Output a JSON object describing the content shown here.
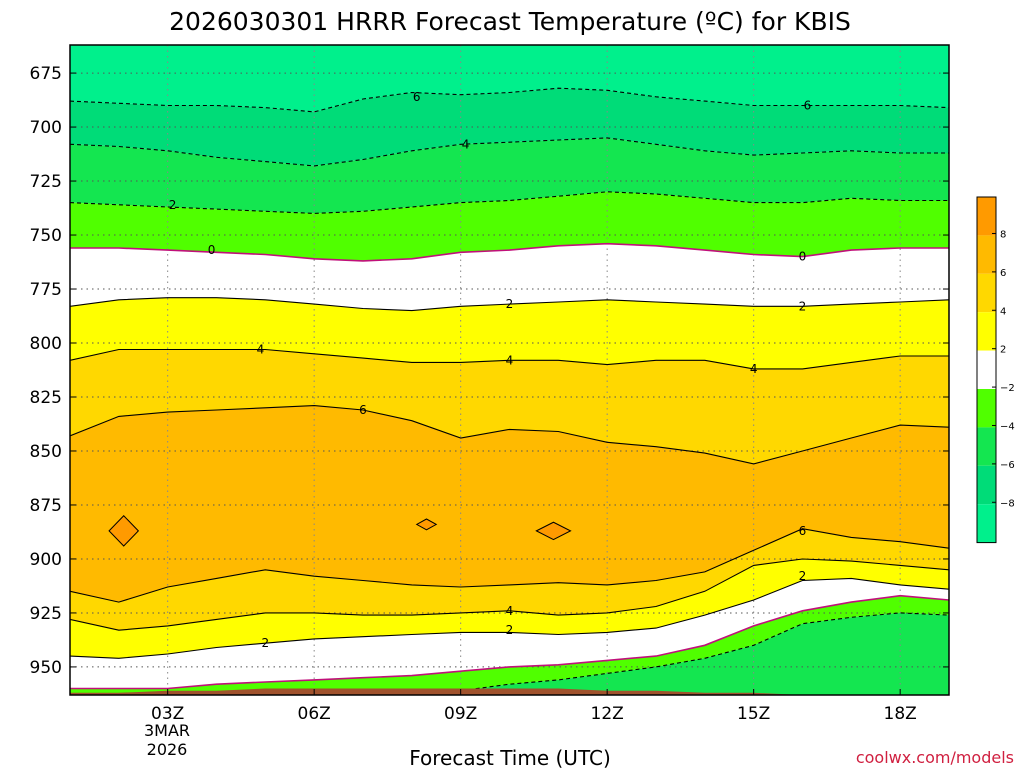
{
  "colors": {
    "cold_8": "#00F08C",
    "cold_6": "#00DC78",
    "cold_4": "#14E650",
    "cold_2": "#50FF00",
    "neutral": "#FFFFFF",
    "warm_2": "#FFFF00",
    "warm_4": "#FFD800",
    "warm_6": "#FFBA00",
    "warm_8": "#FF9A00",
    "ground": "#A0522D",
    "zero_line": "#C0107A",
    "website": "#D02040"
  },
  "chart_data": {
    "type": "heatmap",
    "title": "2026030301 HRRR Forecast Temperature (ºC) for KBIS",
    "xlabel": "Forecast Time (UTC)",
    "ylabel": "",
    "website": "coolwx.com/models",
    "date_label": [
      "3MAR",
      "2026"
    ],
    "xlim": [
      1,
      19
    ],
    "ylim": [
      662,
      963
    ],
    "y_ticks": [
      675,
      700,
      725,
      750,
      775,
      800,
      825,
      850,
      875,
      900,
      925,
      950
    ],
    "y_tick_labels": [
      "675",
      "700",
      "725",
      "750",
      "775",
      "800",
      "825",
      "850",
      "875",
      "900",
      "925",
      "950"
    ],
    "x_ticks": [
      3,
      6,
      9,
      12,
      15,
      18
    ],
    "x_tick_labels": [
      "03Z",
      "06Z",
      "09Z",
      "12Z",
      "15Z",
      "18Z"
    ],
    "colorbar": {
      "tick_labels": [
        "8",
        "6",
        "4",
        "2",
        "−2",
        "−4",
        "−6",
        "−8"
      ]
    },
    "isotherm_x": [
      1,
      2,
      3,
      4,
      5,
      6,
      7,
      8,
      9,
      10,
      11,
      12,
      13,
      14,
      15,
      16,
      17,
      18,
      19
    ],
    "isotherms": [
      {
        "temp": -6,
        "p": [
          688,
          689,
          690,
          690,
          691,
          693,
          687,
          684,
          685,
          684,
          682,
          683,
          686,
          688,
          690,
          690,
          690,
          690,
          691
        ]
      },
      {
        "temp": -4,
        "p": [
          708,
          709,
          711,
          714,
          716,
          718,
          715,
          711,
          708,
          707,
          706,
          705,
          708,
          711,
          713,
          712,
          711,
          712,
          712
        ]
      },
      {
        "temp": -2,
        "p": [
          735,
          736,
          737,
          738,
          739,
          740,
          739,
          737,
          735,
          734,
          732,
          730,
          731,
          733,
          735,
          735,
          733,
          734,
          734
        ]
      },
      {
        "temp": 0,
        "p": [
          756,
          756,
          757,
          758,
          759,
          761,
          762,
          761,
          758,
          757,
          755,
          754,
          755,
          757,
          759,
          760,
          757,
          756,
          756
        ]
      },
      {
        "temp": 2,
        "p": [
          783,
          780,
          779,
          779,
          780,
          782,
          784,
          785,
          783,
          782,
          781,
          780,
          781,
          782,
          783,
          783,
          782,
          781,
          780
        ]
      },
      {
        "temp": 4,
        "p": [
          808,
          803,
          803,
          803,
          803,
          805,
          807,
          809,
          809,
          808,
          808,
          810,
          808,
          808,
          812,
          812,
          809,
          806,
          806
        ]
      },
      {
        "temp": 6,
        "p": [
          843,
          834,
          832,
          831,
          830,
          829,
          831,
          836,
          844,
          840,
          841,
          846,
          848,
          851,
          856,
          850,
          844,
          838,
          839
        ]
      },
      {
        "temp": 6,
        "p": [
          915,
          920,
          913,
          909,
          905,
          908,
          910,
          912,
          913,
          912,
          911,
          912,
          910,
          906,
          896,
          886,
          890,
          892,
          895
        ]
      },
      {
        "temp": 4,
        "p": [
          928,
          933,
          931,
          928,
          925,
          925,
          926,
          926,
          925,
          924,
          926,
          925,
          922,
          915,
          903,
          900,
          901,
          903,
          905
        ]
      },
      {
        "temp": 2,
        "p": [
          945,
          946,
          944,
          941,
          939,
          937,
          936,
          935,
          934,
          934,
          935,
          934,
          932,
          926,
          919,
          910,
          909,
          912,
          914
        ]
      },
      {
        "temp": 0,
        "p": [
          960,
          960,
          960,
          958,
          957,
          956,
          955,
          954,
          952,
          950,
          949,
          947,
          945,
          940,
          931,
          924,
          920,
          917,
          919
        ]
      },
      {
        "temp": -2,
        "p": [
          963,
          963,
          963,
          963,
          963,
          963,
          963,
          963,
          961,
          958,
          956,
          953,
          950,
          946,
          940,
          930,
          927,
          925,
          926
        ]
      }
    ],
    "line_labels": [
      {
        "text": "6",
        "x": 8.1,
        "p": 686
      },
      {
        "text": "6",
        "x": 16.1,
        "p": 690
      },
      {
        "text": "4",
        "x": 9.1,
        "p": 708
      },
      {
        "text": "2",
        "x": 3.1,
        "p": 736
      },
      {
        "text": "0",
        "x": 3.9,
        "p": 757
      },
      {
        "text": "0",
        "x": 16.0,
        "p": 760
      },
      {
        "text": "2",
        "x": 10.0,
        "p": 782
      },
      {
        "text": "2",
        "x": 16.0,
        "p": 783
      },
      {
        "text": "4",
        "x": 4.9,
        "p": 803
      },
      {
        "text": "4",
        "x": 10.0,
        "p": 808
      },
      {
        "text": "4",
        "x": 15.0,
        "p": 812
      },
      {
        "text": "6",
        "x": 7.0,
        "p": 831
      },
      {
        "text": "6",
        "x": 16.0,
        "p": 887
      },
      {
        "text": "2",
        "x": 16.0,
        "p": 908
      },
      {
        "text": "4",
        "x": 10.0,
        "p": 924
      },
      {
        "text": "2",
        "x": 10.0,
        "p": 933
      },
      {
        "text": "2",
        "x": 5.0,
        "p": 939
      }
    ],
    "warm_spots": [
      {
        "x": 2.1,
        "p": 887,
        "rx": 0.3,
        "rp": 7
      },
      {
        "x": 8.3,
        "p": 884,
        "rx": 0.2,
        "rp": 2.5
      },
      {
        "x": 10.9,
        "p": 887,
        "rx": 0.35,
        "rp": 4
      }
    ],
    "surface_p": [
      962,
      962,
      961,
      961,
      960,
      960,
      960,
      960,
      960,
      960,
      960,
      961,
      961,
      962,
      962,
      963,
      963,
      963,
      963
    ]
  }
}
